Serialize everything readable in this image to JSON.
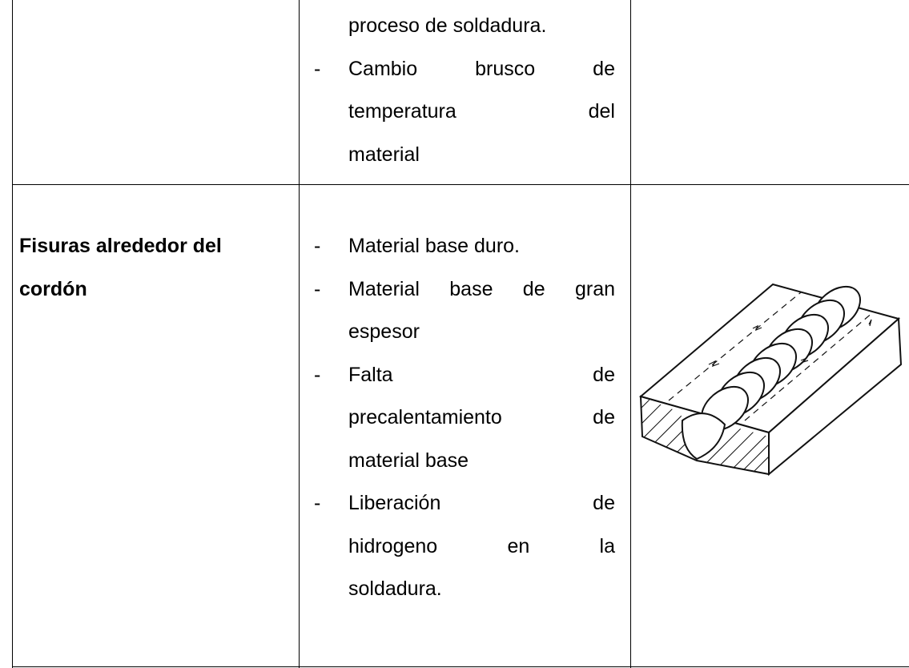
{
  "table": {
    "bullet": "-",
    "rows": [
      {
        "continued_lines": [
          "proceso de soldadura."
        ],
        "causes": [
          [
            "Cambio brusco de",
            "temperatura del",
            "material"
          ]
        ]
      },
      {
        "defect": [
          "Fisuras alrededor del",
          "cordón"
        ],
        "causes": [
          [
            "Material base duro."
          ],
          [
            "Material base de gran",
            "espesor"
          ],
          [
            "Falta de",
            "precalentamiento de",
            "material base"
          ],
          [
            "Liberación de",
            "hidrogeno en la",
            "soldadura."
          ]
        ]
      }
    ]
  }
}
